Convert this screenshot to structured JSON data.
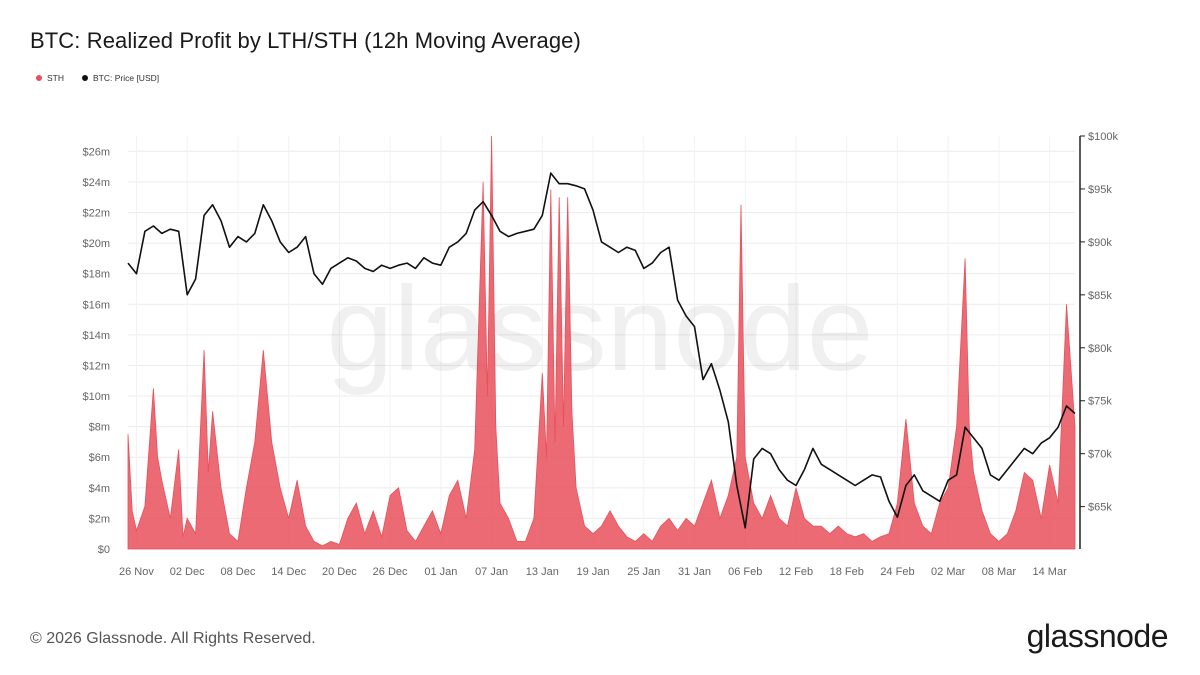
{
  "header": {
    "title": "BTC: Realized Profit by LTH/STH (12h Moving Average)"
  },
  "legend": [
    {
      "label": "STH",
      "color": "#e8505b"
    },
    {
      "label": "BTC: Price [USD]",
      "color": "#111111"
    }
  ],
  "watermark": "glassnode",
  "footer": {
    "copyright": "© 2026 Glassnode. All Rights Reserved.",
    "logo": "glassnode"
  },
  "chart_data": {
    "type": "area",
    "x_tick_labels": [
      "26 Nov",
      "02 Dec",
      "08 Dec",
      "14 Dec",
      "20 Dec",
      "26 Dec",
      "01 Jan",
      "07 Jan",
      "13 Jan",
      "19 Jan",
      "25 Jan",
      "31 Jan",
      "06 Feb",
      "12 Feb",
      "18 Feb",
      "24 Feb",
      "02 Mar",
      "08 Mar",
      "14 Mar"
    ],
    "x_start": "2025-11-25",
    "x_end": "2026-03-17",
    "y_left": {
      "ticks": [
        "$0",
        "$2m",
        "$4m",
        "$6m",
        "$8m",
        "$10m",
        "$12m",
        "$14m",
        "$16m",
        "$18m",
        "$20m",
        "$22m",
        "$24m",
        "$26m"
      ],
      "min": 0,
      "max": 27000000
    },
    "y_right": {
      "ticks": [
        "$65k",
        "$70k",
        "$75k",
        "$80k",
        "$85k",
        "$90k",
        "$95k",
        "$100k"
      ],
      "min": 61000,
      "max": 100000
    },
    "grid": true,
    "legend_position": "top-left",
    "series": [
      {
        "name": "STH",
        "axis": "left",
        "color": "#e8505b",
        "points": [
          [
            "2025-11-25",
            7.5
          ],
          [
            "2025-11-25T12",
            2.5
          ],
          [
            "2025-11-26",
            1.2
          ],
          [
            "2025-11-27",
            2.8
          ],
          [
            "2025-11-28",
            10.5
          ],
          [
            "2025-11-28T12",
            6
          ],
          [
            "2025-11-29",
            4.5
          ],
          [
            "2025-11-30",
            2
          ],
          [
            "2025-12-01",
            6.5
          ],
          [
            "2025-12-01T12",
            0.8
          ],
          [
            "2025-12-02",
            2
          ],
          [
            "2025-12-03",
            1
          ],
          [
            "2025-12-04",
            13
          ],
          [
            "2025-12-04T12",
            5
          ],
          [
            "2025-12-05",
            9
          ],
          [
            "2025-12-06",
            4
          ],
          [
            "2025-12-07",
            1
          ],
          [
            "2025-12-08",
            0.5
          ],
          [
            "2025-12-09",
            4
          ],
          [
            "2025-12-10",
            7
          ],
          [
            "2025-12-11",
            13
          ],
          [
            "2025-12-12",
            7
          ],
          [
            "2025-12-13",
            4
          ],
          [
            "2025-12-14",
            2
          ],
          [
            "2025-12-15",
            4.5
          ],
          [
            "2025-12-16",
            1.5
          ],
          [
            "2025-12-17",
            0.5
          ],
          [
            "2025-12-18",
            0.2
          ],
          [
            "2025-12-19",
            0.5
          ],
          [
            "2025-12-20",
            0.3
          ],
          [
            "2025-12-21",
            2
          ],
          [
            "2025-12-22",
            3
          ],
          [
            "2025-12-23",
            1
          ],
          [
            "2025-12-24",
            2.5
          ],
          [
            "2025-12-25",
            0.8
          ],
          [
            "2025-12-26",
            3.5
          ],
          [
            "2025-12-27",
            4
          ],
          [
            "2025-12-28",
            1.2
          ],
          [
            "2025-12-29",
            0.5
          ],
          [
            "2025-12-30",
            1.5
          ],
          [
            "2025-12-31",
            2.5
          ],
          [
            "2026-01-01",
            1
          ],
          [
            "2026-01-02",
            3.5
          ],
          [
            "2026-01-03",
            4.5
          ],
          [
            "2026-01-04",
            2
          ],
          [
            "2026-01-05",
            6.5
          ],
          [
            "2026-01-06",
            24
          ],
          [
            "2026-01-06T12",
            10
          ],
          [
            "2026-01-07",
            27
          ],
          [
            "2026-01-07T12",
            8
          ],
          [
            "2026-01-08",
            3
          ],
          [
            "2026-01-09",
            2
          ],
          [
            "2026-01-10",
            0.5
          ],
          [
            "2026-01-11",
            0.5
          ],
          [
            "2026-01-12",
            2
          ],
          [
            "2026-01-13",
            11.5
          ],
          [
            "2026-01-13T12",
            6
          ],
          [
            "2026-01-14",
            23.5
          ],
          [
            "2026-01-14T12",
            7
          ],
          [
            "2026-01-15",
            23
          ],
          [
            "2026-01-15T12",
            8
          ],
          [
            "2026-01-16",
            23
          ],
          [
            "2026-01-16T12",
            9
          ],
          [
            "2026-01-17",
            4
          ],
          [
            "2026-01-18",
            1.5
          ],
          [
            "2026-01-19",
            1
          ],
          [
            "2026-01-20",
            1.5
          ],
          [
            "2026-01-21",
            2.5
          ],
          [
            "2026-01-22",
            1.5
          ],
          [
            "2026-01-23",
            0.8
          ],
          [
            "2026-01-24",
            0.5
          ],
          [
            "2026-01-25",
            1
          ],
          [
            "2026-01-26",
            0.5
          ],
          [
            "2026-01-27",
            1.5
          ],
          [
            "2026-01-28",
            2
          ],
          [
            "2026-01-29",
            1.2
          ],
          [
            "2026-01-30",
            2
          ],
          [
            "2026-01-31",
            1.5
          ],
          [
            "2026-02-01",
            3
          ],
          [
            "2026-02-02",
            4.5
          ],
          [
            "2026-02-03",
            2
          ],
          [
            "2026-02-04",
            3.5
          ],
          [
            "2026-02-05",
            6
          ],
          [
            "2026-02-05T12",
            22.5
          ],
          [
            "2026-02-06",
            6
          ],
          [
            "2026-02-07",
            3
          ],
          [
            "2026-02-08",
            2
          ],
          [
            "2026-02-09",
            3.5
          ],
          [
            "2026-02-10",
            2
          ],
          [
            "2026-02-11",
            1.5
          ],
          [
            "2026-02-12",
            4
          ],
          [
            "2026-02-13",
            2
          ],
          [
            "2026-02-14",
            1.5
          ],
          [
            "2026-02-15",
            1.5
          ],
          [
            "2026-02-16",
            1
          ],
          [
            "2026-02-17",
            1.5
          ],
          [
            "2026-02-18",
            1
          ],
          [
            "2026-02-19",
            0.8
          ],
          [
            "2026-02-20",
            1
          ],
          [
            "2026-02-21",
            0.5
          ],
          [
            "2026-02-22",
            0.8
          ],
          [
            "2026-02-23",
            1
          ],
          [
            "2026-02-24",
            3
          ],
          [
            "2026-02-25",
            8.5
          ],
          [
            "2026-02-26",
            3
          ],
          [
            "2026-02-27",
            1.5
          ],
          [
            "2026-02-28",
            1
          ],
          [
            "2026-03-01",
            3
          ],
          [
            "2026-03-02",
            4
          ],
          [
            "2026-03-03",
            8
          ],
          [
            "2026-03-04",
            19
          ],
          [
            "2026-03-04T12",
            8
          ],
          [
            "2026-03-05",
            5
          ],
          [
            "2026-03-06",
            2.5
          ],
          [
            "2026-03-07",
            1
          ],
          [
            "2026-03-08",
            0.5
          ],
          [
            "2026-03-09",
            1
          ],
          [
            "2026-03-10",
            2.5
          ],
          [
            "2026-03-11",
            5
          ],
          [
            "2026-03-12",
            4.5
          ],
          [
            "2026-03-13",
            2
          ],
          [
            "2026-03-14",
            5.5
          ],
          [
            "2026-03-15",
            3
          ],
          [
            "2026-03-16",
            16
          ],
          [
            "2026-03-17",
            8
          ]
        ]
      },
      {
        "name": "BTC: Price [USD]",
        "axis": "right",
        "color": "#111111",
        "points": [
          [
            "2025-11-25",
            88000
          ],
          [
            "2025-11-26",
            87000
          ],
          [
            "2025-11-27",
            91000
          ],
          [
            "2025-11-28",
            91500
          ],
          [
            "2025-11-29",
            90800
          ],
          [
            "2025-11-30",
            91200
          ],
          [
            "2025-12-01",
            91000
          ],
          [
            "2025-12-02",
            85000
          ],
          [
            "2025-12-03",
            86500
          ],
          [
            "2025-12-04",
            92500
          ],
          [
            "2025-12-05",
            93500
          ],
          [
            "2025-12-06",
            92000
          ],
          [
            "2025-12-07",
            89500
          ],
          [
            "2025-12-08",
            90500
          ],
          [
            "2025-12-09",
            90000
          ],
          [
            "2025-12-10",
            90800
          ],
          [
            "2025-12-11",
            93500
          ],
          [
            "2025-12-12",
            92000
          ],
          [
            "2025-12-13",
            90000
          ],
          [
            "2025-12-14",
            89000
          ],
          [
            "2025-12-15",
            89500
          ],
          [
            "2025-12-16",
            90500
          ],
          [
            "2025-12-17",
            87000
          ],
          [
            "2025-12-18",
            86000
          ],
          [
            "2025-12-19",
            87500
          ],
          [
            "2025-12-20",
            88000
          ],
          [
            "2025-12-21",
            88500
          ],
          [
            "2025-12-22",
            88200
          ],
          [
            "2025-12-23",
            87500
          ],
          [
            "2025-12-24",
            87200
          ],
          [
            "2025-12-25",
            87800
          ],
          [
            "2025-12-26",
            87500
          ],
          [
            "2025-12-27",
            87800
          ],
          [
            "2025-12-28",
            88000
          ],
          [
            "2025-12-29",
            87500
          ],
          [
            "2025-12-30",
            88500
          ],
          [
            "2025-12-31",
            88000
          ],
          [
            "2026-01-01",
            87800
          ],
          [
            "2026-01-02",
            89500
          ],
          [
            "2026-01-03",
            90000
          ],
          [
            "2026-01-04",
            90800
          ],
          [
            "2026-01-05",
            93000
          ],
          [
            "2026-01-06",
            93800
          ],
          [
            "2026-01-07",
            92500
          ],
          [
            "2026-01-08",
            91000
          ],
          [
            "2026-01-09",
            90500
          ],
          [
            "2026-01-10",
            90800
          ],
          [
            "2026-01-11",
            91000
          ],
          [
            "2026-01-12",
            91200
          ],
          [
            "2026-01-13",
            92500
          ],
          [
            "2026-01-14",
            96500
          ],
          [
            "2026-01-15",
            95500
          ],
          [
            "2026-01-16",
            95500
          ],
          [
            "2026-01-17",
            95300
          ],
          [
            "2026-01-18",
            95000
          ],
          [
            "2026-01-19",
            93000
          ],
          [
            "2026-01-20",
            90000
          ],
          [
            "2026-01-21",
            89500
          ],
          [
            "2026-01-22",
            89000
          ],
          [
            "2026-01-23",
            89500
          ],
          [
            "2026-01-24",
            89200
          ],
          [
            "2026-01-25",
            87500
          ],
          [
            "2026-01-26",
            88000
          ],
          [
            "2026-01-27",
            89000
          ],
          [
            "2026-01-28",
            89500
          ],
          [
            "2026-01-29",
            84500
          ],
          [
            "2026-01-30",
            83000
          ],
          [
            "2026-01-31",
            82000
          ],
          [
            "2026-02-01",
            77000
          ],
          [
            "2026-02-02",
            78500
          ],
          [
            "2026-02-03",
            76000
          ],
          [
            "2026-02-04",
            73000
          ],
          [
            "2026-02-05",
            67000
          ],
          [
            "2026-02-06",
            63000
          ],
          [
            "2026-02-07",
            69500
          ],
          [
            "2026-02-08",
            70500
          ],
          [
            "2026-02-09",
            70000
          ],
          [
            "2026-02-10",
            68500
          ],
          [
            "2026-02-11",
            67500
          ],
          [
            "2026-02-12",
            67000
          ],
          [
            "2026-02-13",
            68500
          ],
          [
            "2026-02-14",
            70500
          ],
          [
            "2026-02-15",
            69000
          ],
          [
            "2026-02-16",
            68500
          ],
          [
            "2026-02-17",
            68000
          ],
          [
            "2026-02-18",
            67500
          ],
          [
            "2026-02-19",
            67000
          ],
          [
            "2026-02-20",
            67500
          ],
          [
            "2026-02-21",
            68000
          ],
          [
            "2026-02-22",
            67800
          ],
          [
            "2026-02-23",
            65500
          ],
          [
            "2026-02-24",
            64000
          ],
          [
            "2026-02-25",
            67000
          ],
          [
            "2026-02-26",
            68000
          ],
          [
            "2026-02-27",
            66500
          ],
          [
            "2026-02-28",
            66000
          ],
          [
            "2026-03-01",
            65500
          ],
          [
            "2026-03-02",
            67500
          ],
          [
            "2026-03-03",
            68000
          ],
          [
            "2026-03-04",
            72500
          ],
          [
            "2026-03-05",
            71500
          ],
          [
            "2026-03-06",
            70500
          ],
          [
            "2026-03-07",
            68000
          ],
          [
            "2026-03-08",
            67500
          ],
          [
            "2026-03-09",
            68500
          ],
          [
            "2026-03-10",
            69500
          ],
          [
            "2026-03-11",
            70500
          ],
          [
            "2026-03-12",
            70000
          ],
          [
            "2026-03-13",
            71000
          ],
          [
            "2026-03-14",
            71500
          ],
          [
            "2026-03-15",
            72500
          ],
          [
            "2026-03-16",
            74500
          ],
          [
            "2026-03-17",
            73800
          ]
        ]
      }
    ]
  }
}
